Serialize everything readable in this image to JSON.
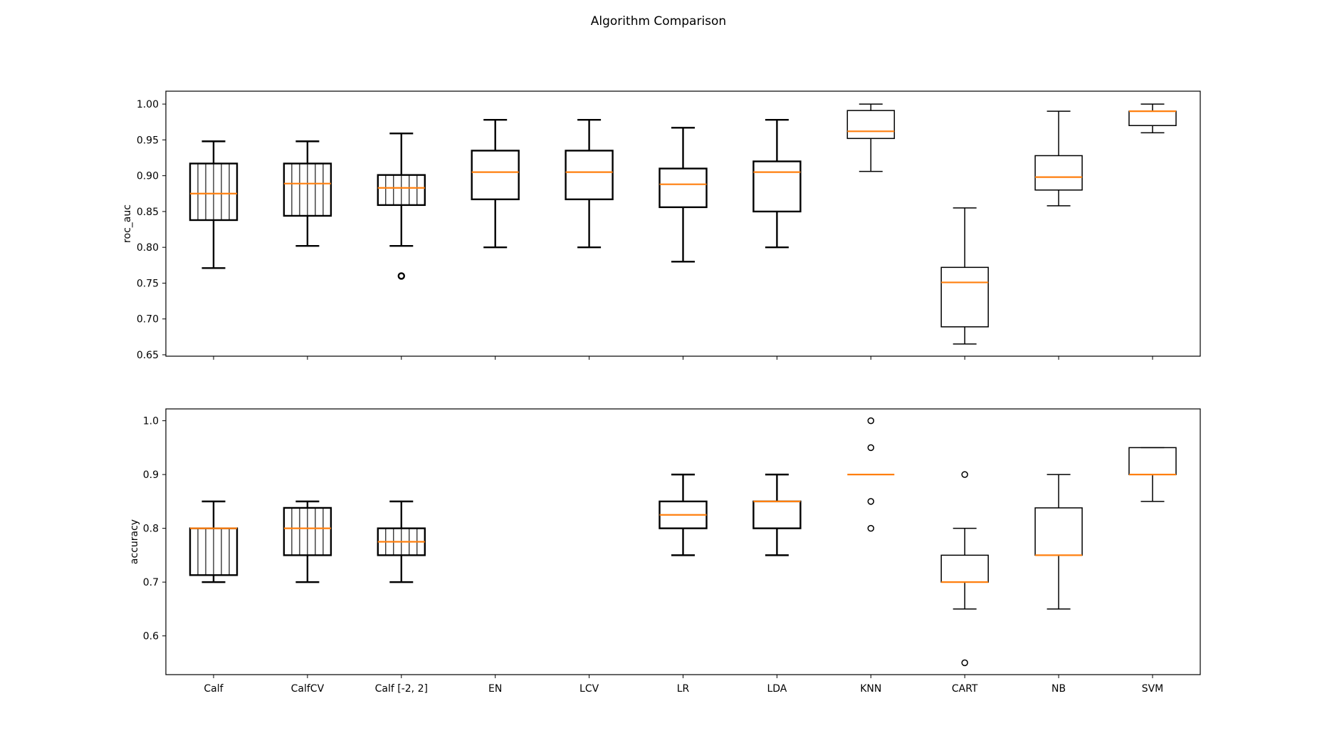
{
  "figure": {
    "title": "Algorithm Comparison"
  },
  "colors": {
    "box": "#000000",
    "median": "#ff7f0e",
    "background": "#ffffff"
  },
  "chart_data": [
    {
      "type": "box",
      "ylabel": "roc_auc",
      "ylim": [
        0.648,
        1.018
      ],
      "yticks": [
        0.65,
        0.7,
        0.75,
        0.8,
        0.85,
        0.9,
        0.95,
        1.0
      ],
      "yticklabels": [
        "0.65",
        "0.70",
        "0.75",
        "0.80",
        "0.85",
        "0.90",
        "0.95",
        "1.00"
      ],
      "show_xticklabels": false,
      "categories": [
        "Calf",
        "CalfCV",
        "Calf [-2, 2]",
        "EN",
        "LCV",
        "LR",
        "LDA",
        "KNN",
        "CART",
        "NB",
        "SVM"
      ],
      "boxes": [
        {
          "whislo": 0.771,
          "q1": 0.838,
          "med": 0.875,
          "q3": 0.917,
          "whishi": 0.948,
          "fliers": [],
          "emphasis": "heavy",
          "hatch": true
        },
        {
          "whislo": 0.802,
          "q1": 0.844,
          "med": 0.889,
          "q3": 0.917,
          "whishi": 0.948,
          "fliers": [],
          "emphasis": "heavy",
          "hatch": true
        },
        {
          "whislo": 0.802,
          "q1": 0.859,
          "med": 0.883,
          "q3": 0.901,
          "whishi": 0.959,
          "fliers": [
            0.76
          ],
          "emphasis": "heavy",
          "hatch": true
        },
        {
          "whislo": 0.8,
          "q1": 0.867,
          "med": 0.905,
          "q3": 0.935,
          "whishi": 0.978,
          "fliers": [],
          "emphasis": "heavy",
          "hatch": false
        },
        {
          "whislo": 0.8,
          "q1": 0.867,
          "med": 0.905,
          "q3": 0.935,
          "whishi": 0.978,
          "fliers": [],
          "emphasis": "heavy",
          "hatch": false
        },
        {
          "whislo": 0.78,
          "q1": 0.856,
          "med": 0.888,
          "q3": 0.91,
          "whishi": 0.967,
          "fliers": [],
          "emphasis": "heavy",
          "hatch": false
        },
        {
          "whislo": 0.8,
          "q1": 0.85,
          "med": 0.905,
          "q3": 0.92,
          "whishi": 0.978,
          "fliers": [],
          "emphasis": "heavy",
          "hatch": false
        },
        {
          "whislo": 0.906,
          "q1": 0.952,
          "med": 0.962,
          "q3": 0.991,
          "whishi": 1.0,
          "fliers": [],
          "emphasis": "normal",
          "hatch": false
        },
        {
          "whislo": 0.665,
          "q1": 0.689,
          "med": 0.751,
          "q3": 0.772,
          "whishi": 0.855,
          "fliers": [],
          "emphasis": "normal",
          "hatch": false
        },
        {
          "whislo": 0.858,
          "q1": 0.88,
          "med": 0.898,
          "q3": 0.928,
          "whishi": 0.99,
          "fliers": [],
          "emphasis": "normal",
          "hatch": false
        },
        {
          "whislo": 0.96,
          "q1": 0.97,
          "med": 0.99,
          "q3": 0.99,
          "whishi": 1.0,
          "fliers": [],
          "emphasis": "normal",
          "hatch": false
        }
      ]
    },
    {
      "type": "box",
      "ylabel": "accuracy",
      "ylim": [
        0.528,
        1.022
      ],
      "yticks": [
        0.6,
        0.7,
        0.8,
        0.9,
        1.0
      ],
      "yticklabels": [
        "0.6",
        "0.7",
        "0.8",
        "0.9",
        "1.0"
      ],
      "show_xticklabels": true,
      "categories": [
        "Calf",
        "CalfCV",
        "Calf [-2, 2]",
        "EN",
        "LCV",
        "LR",
        "LDA",
        "KNN",
        "CART",
        "NB",
        "SVM"
      ],
      "boxes": [
        {
          "whislo": 0.7,
          "q1": 0.713,
          "med": 0.8,
          "q3": 0.8,
          "whishi": 0.85,
          "fliers": [],
          "emphasis": "heavy",
          "hatch": true
        },
        {
          "whislo": 0.7,
          "q1": 0.75,
          "med": 0.8,
          "q3": 0.838,
          "whishi": 0.85,
          "fliers": [],
          "emphasis": "heavy",
          "hatch": true
        },
        {
          "whislo": 0.7,
          "q1": 0.75,
          "med": 0.775,
          "q3": 0.8,
          "whishi": 0.85,
          "fliers": [],
          "emphasis": "heavy",
          "hatch": true
        },
        null,
        null,
        {
          "whislo": 0.75,
          "q1": 0.8,
          "med": 0.825,
          "q3": 0.85,
          "whishi": 0.9,
          "fliers": [],
          "emphasis": "heavy",
          "hatch": false
        },
        {
          "whislo": 0.75,
          "q1": 0.8,
          "med": 0.85,
          "q3": 0.85,
          "whishi": 0.9,
          "fliers": [],
          "emphasis": "heavy",
          "hatch": false
        },
        {
          "whislo": 0.9,
          "q1": 0.9,
          "med": 0.9,
          "q3": 0.9,
          "whishi": 0.9,
          "fliers": [
            0.8,
            0.85,
            0.95,
            1.0
          ],
          "emphasis": "normal",
          "hatch": false
        },
        {
          "whislo": 0.65,
          "q1": 0.7,
          "med": 0.7,
          "q3": 0.75,
          "whishi": 0.8,
          "fliers": [
            0.55,
            0.9
          ],
          "emphasis": "normal",
          "hatch": false
        },
        {
          "whislo": 0.65,
          "q1": 0.75,
          "med": 0.75,
          "q3": 0.838,
          "whishi": 0.9,
          "fliers": [],
          "emphasis": "normal",
          "hatch": false
        },
        {
          "whislo": 0.85,
          "q1": 0.9,
          "med": 0.9,
          "q3": 0.95,
          "whishi": 0.95,
          "fliers": [],
          "emphasis": "normal",
          "hatch": false
        }
      ]
    }
  ]
}
